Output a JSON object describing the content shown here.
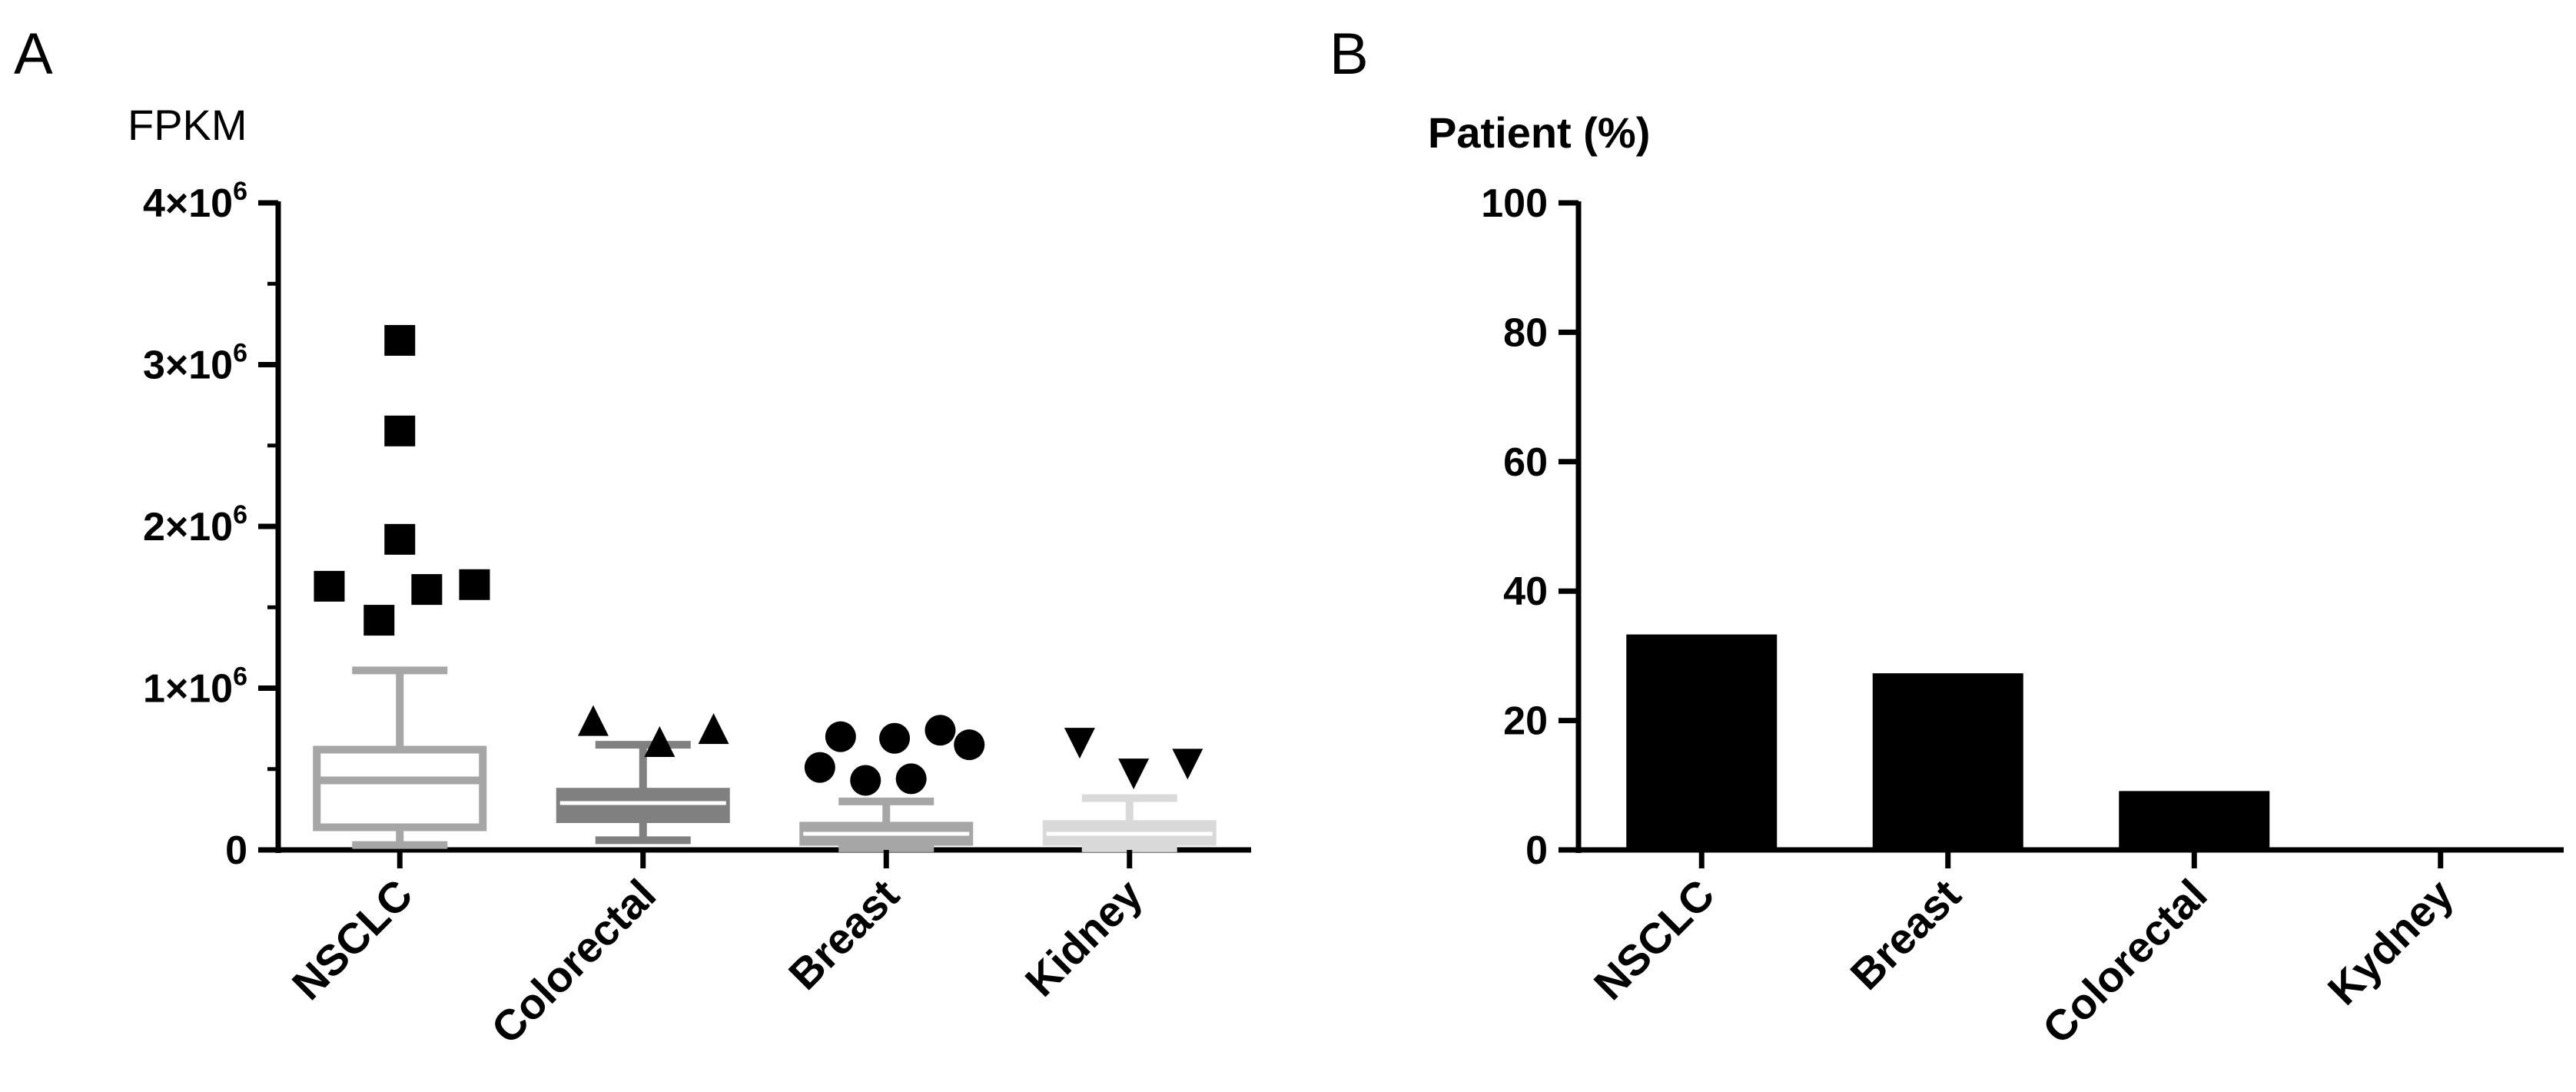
{
  "panels": {
    "a": {
      "letter": "A"
    },
    "b": {
      "letter": "B"
    }
  },
  "chart_data": [
    {
      "type": "box",
      "title": "",
      "ylabel": "FPKM",
      "xlabel": "",
      "ylim": [
        0,
        4000000
      ],
      "yticks": [
        {
          "value": 0,
          "label": "0"
        },
        {
          "value": 1000000,
          "mantissa": "1",
          "times": "×10",
          "exponent": "6"
        },
        {
          "value": 2000000,
          "mantissa": "2",
          "times": "×10",
          "exponent": "6"
        },
        {
          "value": 3000000,
          "mantissa": "3",
          "times": "×10",
          "exponent": "6"
        },
        {
          "value": 4000000,
          "mantissa": "4",
          "times": "×10",
          "exponent": "6"
        }
      ],
      "categories": [
        "NSCLC",
        "Colorectal",
        "Breast",
        "Kidney"
      ],
      "boxes": [
        {
          "category": "NSCLC",
          "color": "#a6a6a6",
          "marker": "square",
          "whisker_low": 30000,
          "q1": 140000,
          "median": 430000,
          "q3": 620000,
          "whisker_high": 1110000,
          "outliers": [
            {
              "x": 0.0,
              "y": 3150000
            },
            {
              "x": 0.0,
              "y": 2590000
            },
            {
              "x": 0.0,
              "y": 1920000
            },
            {
              "x": -0.34,
              "y": 1630000
            },
            {
              "x": 0.13,
              "y": 1610000
            },
            {
              "x": 0.36,
              "y": 1640000
            },
            {
              "x": -0.1,
              "y": 1420000
            }
          ]
        },
        {
          "category": "Colorectal",
          "color": "#808080",
          "marker": "triangle-up",
          "whisker_low": 60000,
          "q1": 190000,
          "median": 290000,
          "q3": 360000,
          "whisker_high": 650000,
          "outliers": [
            {
              "x": -0.24,
              "y": 800000
            },
            {
              "x": 0.08,
              "y": 670000
            },
            {
              "x": 0.34,
              "y": 750000
            }
          ]
        },
        {
          "category": "Breast",
          "color": "#a6a6a6",
          "marker": "circle",
          "whisker_low": 10000,
          "q1": 50000,
          "median": 100000,
          "q3": 150000,
          "whisker_high": 300000,
          "outliers": [
            {
              "x": -0.32,
              "y": 510000
            },
            {
              "x": -0.22,
              "y": 700000
            },
            {
              "x": -0.1,
              "y": 430000
            },
            {
              "x": 0.04,
              "y": 690000
            },
            {
              "x": 0.12,
              "y": 440000
            },
            {
              "x": 0.26,
              "y": 740000
            },
            {
              "x": 0.4,
              "y": 650000
            }
          ]
        },
        {
          "category": "Kidney",
          "color": "#d9d9d9",
          "marker": "triangle-down",
          "whisker_low": 10000,
          "q1": 50000,
          "median": 100000,
          "q3": 160000,
          "whisker_high": 320000,
          "outliers": [
            {
              "x": -0.24,
              "y": 660000
            },
            {
              "x": 0.02,
              "y": 470000
            },
            {
              "x": 0.28,
              "y": 530000
            }
          ]
        }
      ]
    },
    {
      "type": "bar",
      "title": "",
      "ylabel": "Patient (%)",
      "xlabel": "",
      "ylim": [
        0,
        100
      ],
      "yticks": [
        0,
        20,
        40,
        60,
        80,
        100
      ],
      "categories": [
        "NSCLC",
        "Breast",
        "Colorectal",
        "Kydney"
      ],
      "values": [
        33.3,
        27.3,
        9.1,
        0
      ],
      "color": "#000000"
    }
  ]
}
